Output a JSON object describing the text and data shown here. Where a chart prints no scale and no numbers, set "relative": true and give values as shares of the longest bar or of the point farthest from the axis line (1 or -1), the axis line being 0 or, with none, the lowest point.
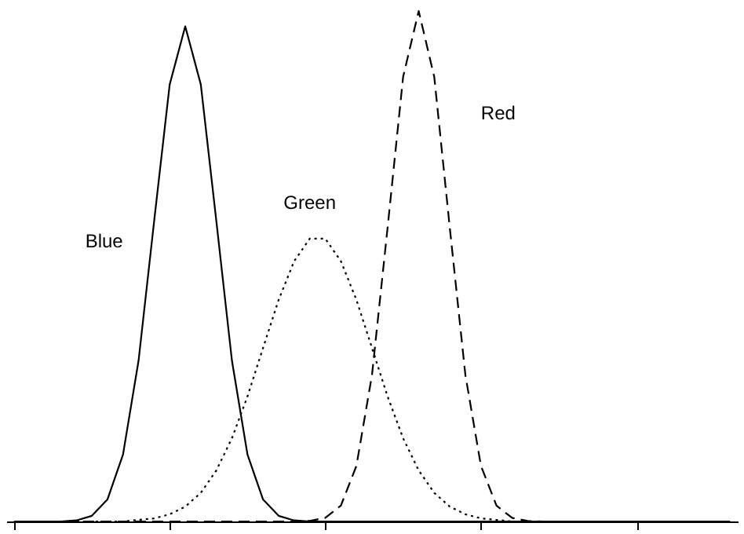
{
  "chart_data": {
    "type": "line",
    "relative": true,
    "tick_labels": false,
    "categories": [
      null,
      null,
      null,
      null,
      null,
      null,
      null,
      null,
      null,
      null,
      null,
      null,
      null,
      null,
      null,
      null,
      null,
      null,
      null,
      null,
      null,
      null,
      null,
      null,
      null,
      null,
      null,
      null,
      null,
      null,
      null,
      null,
      null,
      null,
      null,
      null,
      null,
      null,
      null,
      null,
      null,
      null,
      null,
      null,
      null,
      null,
      null
    ],
    "series": [
      {
        "name": "Blue",
        "color": "#000000",
        "line_style": "solid",
        "values": [
          0,
          0,
          0,
          0,
          0.002,
          0.011,
          0.043,
          0.131,
          0.315,
          0.588,
          0.856,
          0.97,
          0.856,
          0.588,
          0.315,
          0.131,
          0.043,
          0.011,
          0.002,
          0,
          0,
          0,
          0,
          0,
          0,
          0,
          0,
          0,
          0,
          0,
          0,
          0,
          0,
          0,
          0,
          0,
          0,
          0,
          0,
          0,
          0,
          0,
          0,
          0,
          0,
          0,
          0
        ]
      },
      {
        "name": "Green",
        "color": "#000000",
        "line_style": "dotted",
        "values": [
          0,
          0,
          0,
          0,
          0,
          0,
          0,
          0,
          0.003,
          0.006,
          0.014,
          0.029,
          0.056,
          0.1,
          0.163,
          0.245,
          0.34,
          0.434,
          0.51,
          0.554,
          0.554,
          0.51,
          0.434,
          0.34,
          0.245,
          0.163,
          0.1,
          0.056,
          0.029,
          0.014,
          0.006,
          0.003,
          0,
          0,
          0,
          0,
          0,
          0,
          0,
          0,
          0,
          0,
          0,
          0,
          0,
          0,
          0
        ]
      },
      {
        "name": "Red",
        "color": "#000000",
        "line_style": "dashed",
        "values": [
          0,
          0,
          0,
          0,
          0,
          0,
          0,
          0,
          0,
          0,
          0,
          0,
          0,
          0,
          0,
          0,
          0,
          0,
          0,
          0.001,
          0.007,
          0.031,
          0.109,
          0.287,
          0.575,
          0.871,
          1,
          0.871,
          0.575,
          0.287,
          0.109,
          0.031,
          0.007,
          0.001,
          0,
          0,
          0,
          0,
          0,
          0,
          0,
          0,
          0,
          0,
          0,
          0,
          0
        ]
      }
    ]
  }
}
